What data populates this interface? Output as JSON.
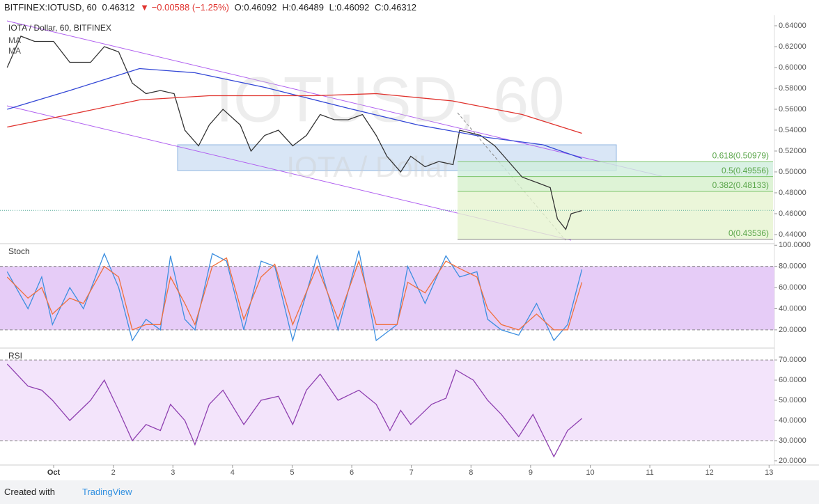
{
  "header": {
    "symbol": "BITFINEX:IOTUSD, 60",
    "last": 0.46312,
    "change": "▼ −0.00588 (−1.25%)",
    "open": "O:0.46092",
    "high": "H:0.46489",
    "low": "L:0.46092",
    "close": "C:0.46312"
  },
  "footer": {
    "created": "Created with",
    "brand": "TradingView"
  },
  "chart_data": [
    {
      "type": "line",
      "title": "IOTA / Dollar, 60, BITFINEX",
      "ma_labels": [
        "MA",
        "MA"
      ],
      "watermark": "IOTUSD, 60",
      "watermark_subtitle": "IOTA / Dollar",
      "xlim": [
        0.1,
        13.09
      ],
      "ylim": [
        0.4313,
        0.65
      ],
      "yticks": [
        {
          "value": 0.44,
          "label": "0.44000"
        },
        {
          "value": 0.46,
          "label": "0.46000"
        },
        {
          "value": 0.48,
          "label": "0.48000"
        },
        {
          "value": 0.5,
          "label": "0.50000"
        },
        {
          "value": 0.52,
          "label": "0.52000"
        },
        {
          "value": 0.54,
          "label": "0.54000"
        },
        {
          "value": 0.56,
          "label": "0.56000"
        },
        {
          "value": 0.58,
          "label": "0.58000"
        },
        {
          "value": 0.6,
          "label": "0.60000"
        },
        {
          "value": 0.62,
          "label": "0.62000"
        },
        {
          "value": 0.64,
          "label": "0.64000"
        }
      ],
      "fibonacci": [
        {
          "value": 0.50979,
          "label": "0.618(0.50979)"
        },
        {
          "value": 0.49556,
          "label": "0.5(0.49556)"
        },
        {
          "value": 0.48133,
          "label": "0.382(0.48133)"
        },
        {
          "value": 0.43536,
          "label": "0(0.43536)"
        }
      ],
      "series": [
        {
          "color": "#333333",
          "x": [
            0.22,
            0.45,
            0.68,
            1.0,
            1.27,
            1.62,
            1.85,
            2.09,
            2.32,
            2.55,
            2.79,
            3.02,
            3.2,
            3.43,
            3.61,
            3.84,
            4.13,
            4.31,
            4.54,
            4.77,
            5.01,
            5.24,
            5.47,
            5.71,
            5.94,
            6.18,
            6.41,
            6.59,
            6.82,
            6.99,
            7.23,
            7.46,
            7.7,
            7.81,
            8.16,
            8.4,
            8.63,
            8.86,
            9.1,
            9.33,
            9.45,
            9.59,
            9.68,
            9.86
          ],
          "values": [
            0.6,
            0.63,
            0.625,
            0.625,
            0.605,
            0.605,
            0.62,
            0.615,
            0.585,
            0.575,
            0.578,
            0.575,
            0.54,
            0.525,
            0.545,
            0.56,
            0.545,
            0.52,
            0.535,
            0.54,
            0.525,
            0.535,
            0.555,
            0.55,
            0.55,
            0.555,
            0.535,
            0.515,
            0.5,
            0.515,
            0.505,
            0.51,
            0.507,
            0.54,
            0.535,
            0.525,
            0.51,
            0.495,
            0.49,
            0.485,
            0.455,
            0.445,
            0.46,
            0.463
          ]
        },
        {
          "color": "#3347d6",
          "x": [
            0.22,
            1.27,
            2.44,
            3.37,
            4.54,
            5.94,
            7.11,
            8.28,
            9.21,
            9.86
          ],
          "values": [
            0.56,
            0.578,
            0.599,
            0.595,
            0.581,
            0.561,
            0.545,
            0.533,
            0.526,
            0.513
          ]
        },
        {
          "color": "#e0332e",
          "x": [
            0.22,
            1.27,
            2.44,
            3.61,
            5.36,
            6.41,
            7.69,
            8.86,
            9.86
          ],
          "values": [
            0.543,
            0.555,
            0.569,
            0.573,
            0.573,
            0.575,
            0.568,
            0.555,
            0.537
          ]
        }
      ]
    },
    {
      "type": "line",
      "title": "Stoch",
      "xlim": [
        0.1,
        13.09
      ],
      "ylim": [
        2.8,
        101.5
      ],
      "yticks": [
        {
          "value": 20,
          "label": "20.0000"
        },
        {
          "value": 40,
          "label": "40.0000"
        },
        {
          "value": 60,
          "label": "60.0000"
        },
        {
          "value": 80,
          "label": "80.0000"
        },
        {
          "value": 100,
          "label": "100.0000"
        }
      ],
      "band": [
        20,
        80
      ],
      "band_color": "#e6ccf7",
      "series": [
        {
          "color": "#3d8fe0",
          "x": [
            0.22,
            0.57,
            0.8,
            0.98,
            1.27,
            1.5,
            1.85,
            2.09,
            2.32,
            2.55,
            2.79,
            2.96,
            3.2,
            3.37,
            3.66,
            3.9,
            4.19,
            4.48,
            4.71,
            5.01,
            5.42,
            5.77,
            6.12,
            6.41,
            6.76,
            6.94,
            7.23,
            7.58,
            7.81,
            8.1,
            8.28,
            8.51,
            8.8,
            9.1,
            9.39,
            9.62,
            9.86
          ],
          "values": [
            75,
            40,
            70,
            25,
            60,
            40,
            92,
            60,
            10,
            30,
            20,
            90,
            30,
            20,
            92,
            85,
            20,
            85,
            80,
            10,
            90,
            20,
            95,
            10,
            25,
            80,
            45,
            90,
            70,
            75,
            30,
            20,
            15,
            45,
            10,
            25,
            77
          ]
        },
        {
          "color": "#f0703c",
          "x": [
            0.22,
            0.57,
            0.8,
            0.98,
            1.27,
            1.5,
            1.85,
            2.09,
            2.32,
            2.55,
            2.79,
            2.96,
            3.2,
            3.37,
            3.66,
            3.9,
            4.19,
            4.48,
            4.71,
            5.01,
            5.42,
            5.77,
            6.12,
            6.41,
            6.76,
            6.94,
            7.23,
            7.58,
            7.81,
            8.1,
            8.28,
            8.51,
            8.8,
            9.1,
            9.39,
            9.62,
            9.86
          ],
          "values": [
            70,
            50,
            60,
            35,
            50,
            45,
            80,
            70,
            20,
            25,
            25,
            70,
            45,
            25,
            80,
            88,
            30,
            70,
            82,
            25,
            80,
            30,
            85,
            25,
            25,
            65,
            55,
            85,
            78,
            70,
            40,
            25,
            20,
            35,
            20,
            20,
            65
          ]
        }
      ]
    },
    {
      "type": "line",
      "title": "RSI",
      "xlim": [
        0.1,
        13.09
      ],
      "ylim": [
        17.9,
        75.9
      ],
      "yticks": [
        {
          "value": 20,
          "label": "20.0000"
        },
        {
          "value": 30,
          "label": "30.0000"
        },
        {
          "value": 40,
          "label": "40.0000"
        },
        {
          "value": 50,
          "label": "50.0000"
        },
        {
          "value": 60,
          "label": "60.0000"
        },
        {
          "value": 70,
          "label": "70.0000"
        }
      ],
      "band": [
        30,
        70
      ],
      "band_color": "#f3e4fb",
      "xticks": [
        {
          "value": 1,
          "label": "Oct"
        },
        2,
        3,
        4,
        5,
        6,
        7,
        8,
        9,
        10,
        11,
        12,
        13
      ],
      "series": [
        {
          "color": "#8e3fb0",
          "x": [
            0.22,
            0.57,
            0.8,
            0.98,
            1.27,
            1.62,
            1.85,
            2.09,
            2.32,
            2.55,
            2.79,
            2.96,
            3.2,
            3.37,
            3.61,
            3.84,
            4.19,
            4.48,
            4.77,
            5.01,
            5.24,
            5.47,
            5.77,
            6.12,
            6.41,
            6.64,
            6.82,
            6.99,
            7.34,
            7.58,
            7.75,
            8.04,
            8.28,
            8.51,
            8.8,
            9.04,
            9.39,
            9.62,
            9.86
          ],
          "values": [
            68,
            57,
            55,
            50,
            40,
            50,
            60,
            45,
            30,
            38,
            35,
            48,
            40,
            28,
            48,
            55,
            38,
            50,
            52,
            38,
            55,
            63,
            50,
            55,
            48,
            35,
            45,
            38,
            48,
            51,
            65,
            60,
            50,
            43,
            32,
            43,
            22,
            35,
            41
          ]
        }
      ]
    }
  ]
}
